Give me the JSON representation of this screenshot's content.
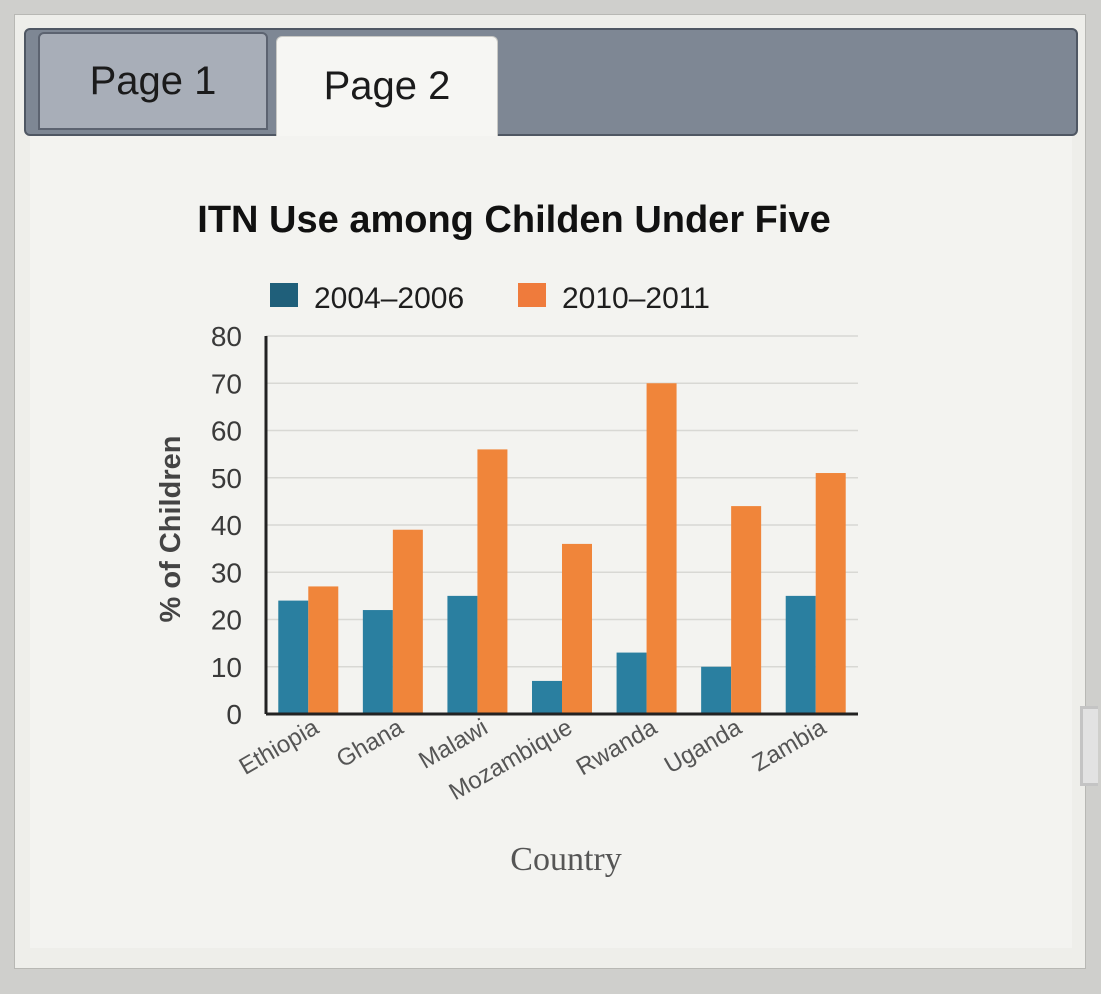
{
  "tabs": [
    {
      "label": "Page 1"
    },
    {
      "label": "Page 2"
    }
  ],
  "colors": {
    "series_2004_2006": "#2a7fa0",
    "series_2010_2011": "#f0853a",
    "legend_2004_2006": "#1f5f7a",
    "legend_2010_2011": "#ef7b3c",
    "axis": "#222222",
    "grid": "#d8d8d4"
  },
  "chart_data": {
    "type": "bar",
    "title": "ITN Use among Childen Under Five",
    "xlabel": "Country",
    "ylabel": "% of Children",
    "ylim": [
      0,
      80
    ],
    "yticks": [
      "0",
      "10",
      "20",
      "30",
      "40",
      "50",
      "60",
      "70",
      "80"
    ],
    "grid": true,
    "legend_position": "top",
    "categories": [
      "Ethiopia",
      "Ghana",
      "Malawi",
      "Mozambique",
      "Rwanda",
      "Uganda",
      "Zambia"
    ],
    "series": [
      {
        "name": "2004–2006",
        "values": [
          24,
          22,
          25,
          7,
          13,
          10,
          25
        ]
      },
      {
        "name": "2010–2011",
        "values": [
          27,
          39,
          56,
          36,
          70,
          44,
          51
        ]
      }
    ]
  }
}
